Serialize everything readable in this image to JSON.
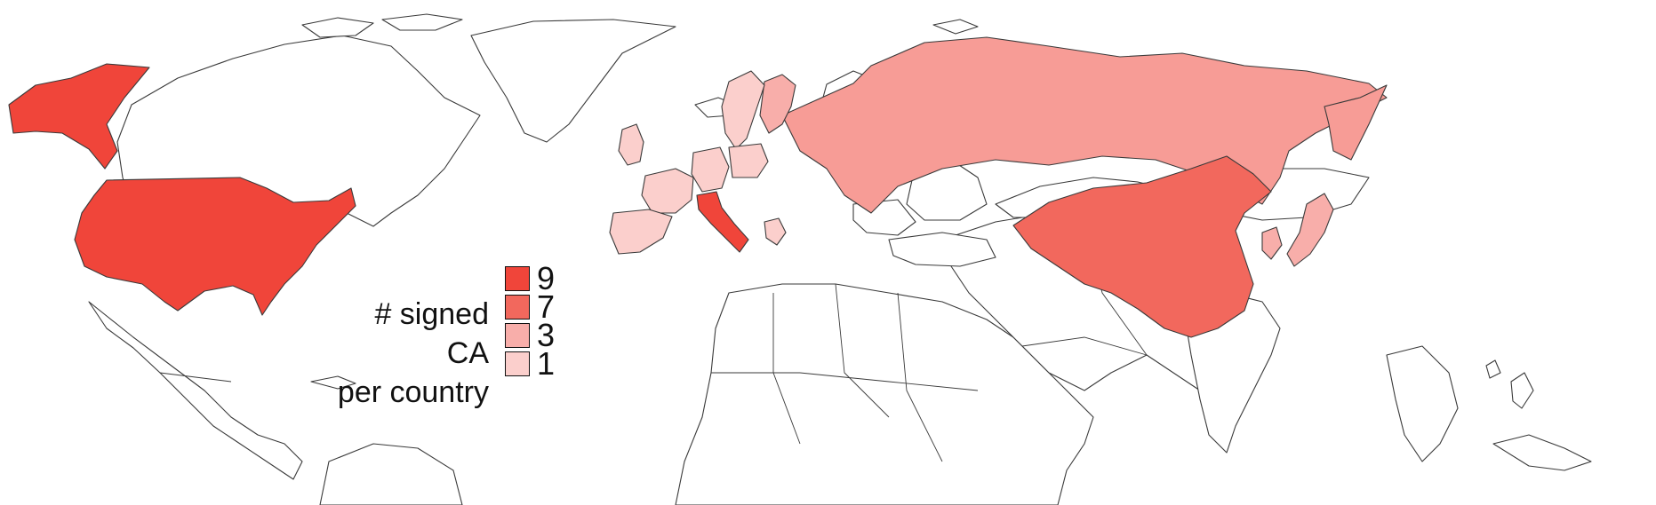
{
  "legend": {
    "title_line1": "# signed CA",
    "title_line2": "per country",
    "items": [
      {
        "label": "9",
        "value": 9,
        "color": "#f0453a"
      },
      {
        "label": "7",
        "value": 7,
        "color": "#f2685d"
      },
      {
        "label": "3",
        "value": 3,
        "color": "#f8aeaa"
      },
      {
        "label": "1",
        "value": 1,
        "color": "#fbcfcc"
      }
    ]
  },
  "countries": [
    {
      "name": "United States",
      "value": 9,
      "color": "#f0453a"
    },
    {
      "name": "Italy",
      "value": 9,
      "color": "#f0453a"
    },
    {
      "name": "China",
      "value": 7,
      "color": "#f2685d"
    },
    {
      "name": "Russia",
      "value": 3,
      "color": "#f79c96"
    },
    {
      "name": "France",
      "value": 1,
      "color": "#fbcfcc"
    },
    {
      "name": "Spain",
      "value": 1,
      "color": "#fbcfcc"
    },
    {
      "name": "Germany",
      "value": 1,
      "color": "#fbcfcc"
    },
    {
      "name": "Poland",
      "value": 1,
      "color": "#fbcfcc"
    },
    {
      "name": "Sweden",
      "value": 1,
      "color": "#fbcfcc"
    },
    {
      "name": "Finland",
      "value": 3,
      "color": "#f8aeaa"
    },
    {
      "name": "United Kingdom",
      "value": 1,
      "color": "#fbcfcc"
    },
    {
      "name": "Greece",
      "value": 1,
      "color": "#fbcfcc"
    },
    {
      "name": "Japan",
      "value": 3,
      "color": "#f8aeaa"
    },
    {
      "name": "South Korea",
      "value": 3,
      "color": "#f8aeaa"
    }
  ]
}
